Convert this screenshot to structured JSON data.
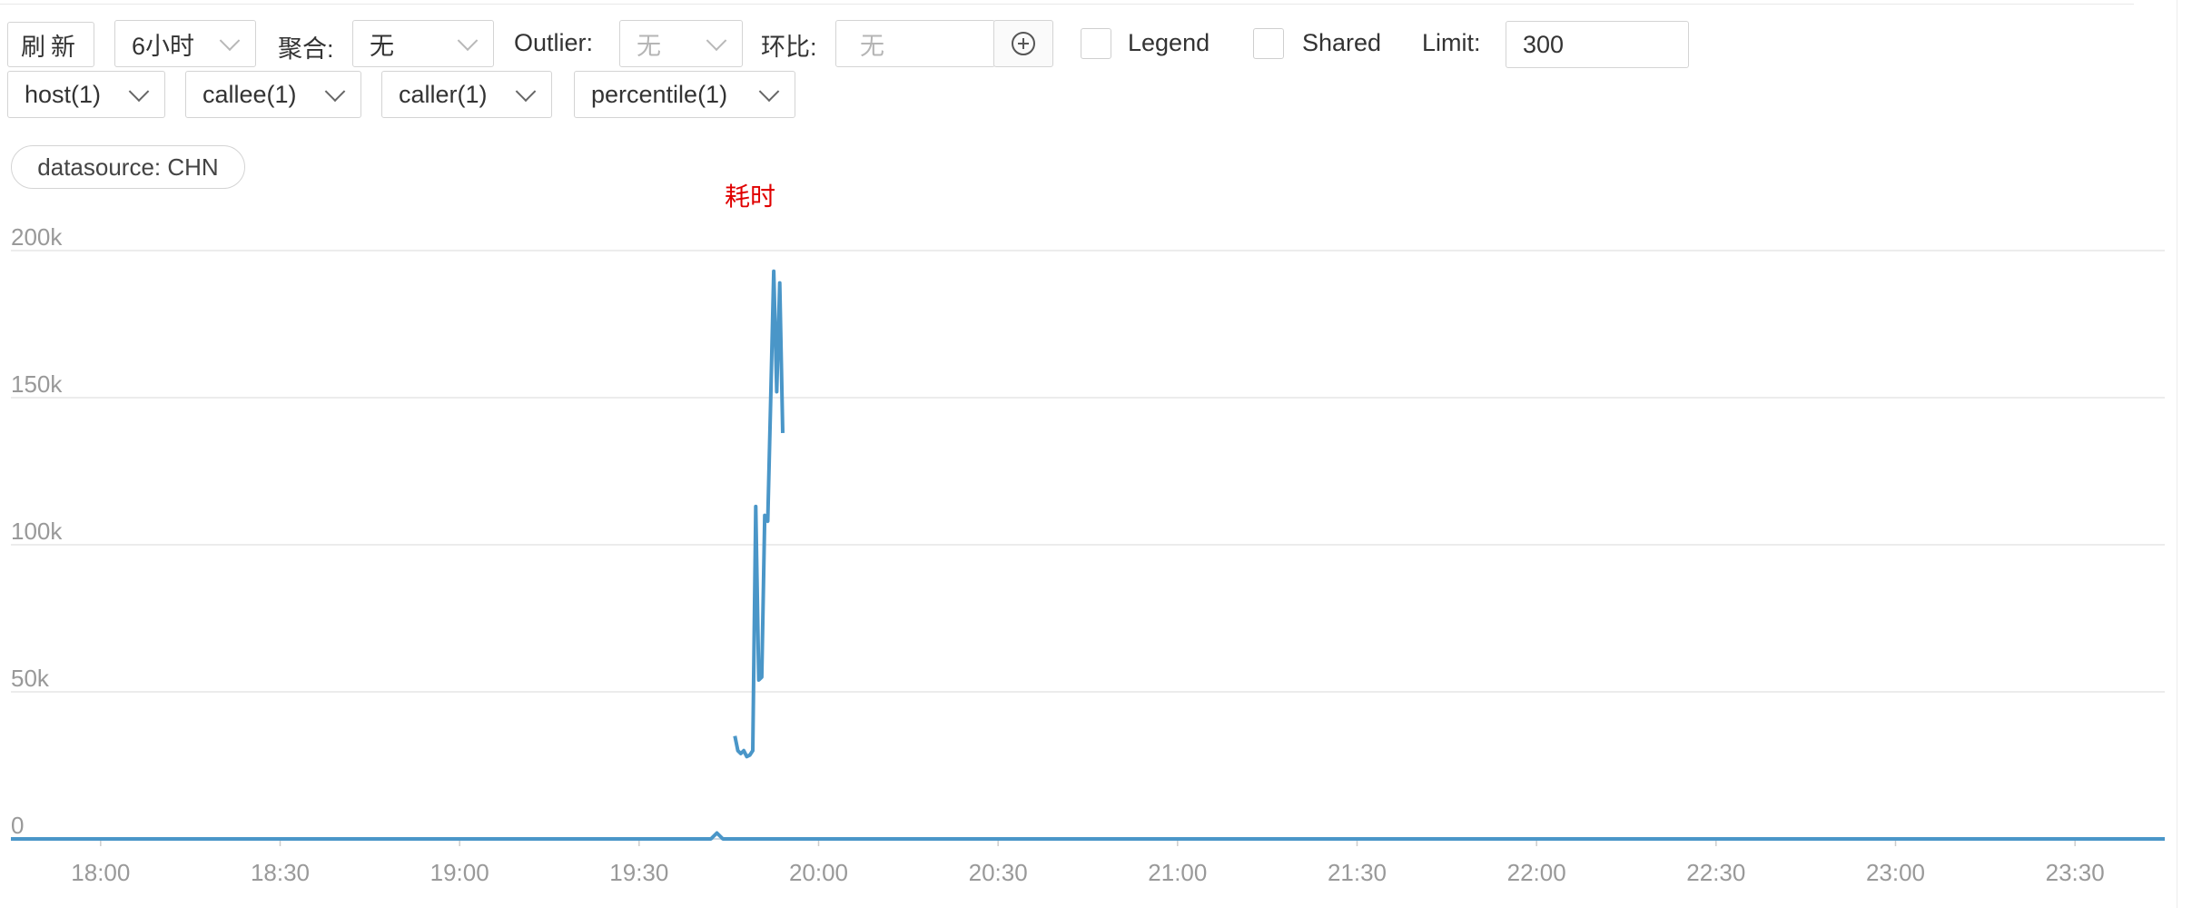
{
  "toolbar": {
    "refresh_label": "刷新",
    "time_range": "6小时",
    "aggregate_label": "聚合:",
    "aggregate_value": "无",
    "outlier_label": "Outlier:",
    "outlier_value": "无",
    "ratio_label": "环比:",
    "ratio_placeholder": "无",
    "legend_label": "Legend",
    "shared_label": "Shared",
    "limit_label": "Limit:",
    "limit_value": "300"
  },
  "filters": [
    "host(1)",
    "callee(1)",
    "caller(1)",
    "percentile(1)"
  ],
  "datasource_tag": "datasource: CHN",
  "icons": {
    "add_ratio": "plus-circle-icon",
    "dropdown": "chevron-down-icon"
  },
  "colors": {
    "series": "#4a96c8",
    "title": "#e00000",
    "grid": "#e6e6e6",
    "axis_text": "#999999"
  },
  "chart_data": {
    "type": "line",
    "title": "耗时",
    "xlabel": "",
    "ylabel": "",
    "x_ticks": [
      "18:00",
      "18:30",
      "19:00",
      "19:30",
      "20:00",
      "20:30",
      "21:00",
      "21:30",
      "22:00",
      "22:30",
      "23:00",
      "23:30"
    ],
    "y_ticks": [
      "0",
      "50k",
      "100k",
      "150k",
      "200k"
    ],
    "xlim": [
      "17:45",
      "23:45"
    ],
    "ylim": [
      0,
      200000
    ],
    "grid": true,
    "legend": false,
    "series": [
      {
        "x": [
          "19:46",
          "19:46:30",
          "19:47",
          "19:47:30",
          "19:48",
          "19:48:30",
          "19:49",
          "19:49:30",
          "19:50",
          "19:50:30",
          "19:51",
          "19:51:30",
          "19:52",
          "19:52:30",
          "19:53",
          "19:53:30",
          "19:54",
          "19:54:30",
          "19:55",
          "19:55:30"
        ],
        "values": [
          35000,
          30000,
          29000,
          30000,
          28000,
          28500,
          30000,
          113000,
          54000,
          55000,
          110000,
          108000,
          150000,
          193000,
          152000,
          189000,
          138000,
          null,
          null,
          null
        ]
      },
      {
        "x": [
          "17:45",
          "19:42",
          "19:43",
          "19:44",
          "19:56",
          "23:45"
        ],
        "values": [
          0,
          0,
          2000,
          0,
          0,
          0
        ]
      }
    ]
  }
}
